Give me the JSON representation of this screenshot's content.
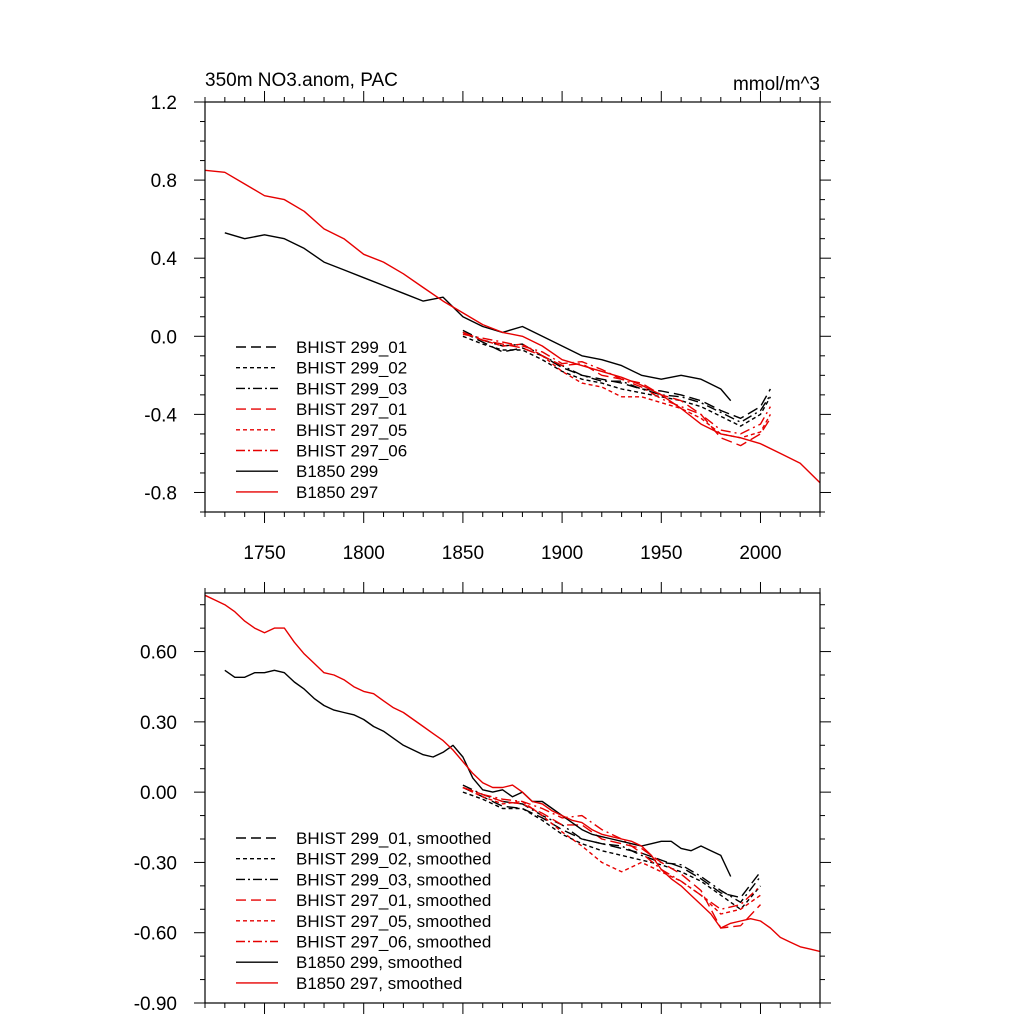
{
  "chart_data": [
    {
      "type": "line",
      "title": "350m NO3.anom, PAC",
      "units": "mmol/m^3",
      "xlim": [
        1720,
        2030
      ],
      "ylim": [
        -0.9,
        1.2
      ],
      "yticks": [
        "1.2",
        "0.8",
        "0.4",
        "0.0",
        "-0.4",
        "-0.8"
      ],
      "xticks": [
        "1750",
        "1800",
        "1850",
        "1900",
        "1950",
        "2000"
      ],
      "legend_position": "bottom-left",
      "series": [
        {
          "name": "BHIST 299_01",
          "color": "#000000",
          "dash": "long-dash",
          "x": [
            1850,
            1860,
            1870,
            1880,
            1890,
            1900,
            1910,
            1920,
            1930,
            1940,
            1950,
            1960,
            1970,
            1980,
            1990,
            2000,
            2005
          ],
          "y": [
            0.02,
            -0.03,
            -0.08,
            -0.06,
            -0.1,
            -0.16,
            -0.2,
            -0.22,
            -0.24,
            -0.27,
            -0.28,
            -0.3,
            -0.33,
            -0.38,
            -0.42,
            -0.36,
            -0.27
          ]
        },
        {
          "name": "BHIST 299_02",
          "color": "#000000",
          "dash": "short-dash",
          "x": [
            1850,
            1860,
            1870,
            1880,
            1890,
            1900,
            1910,
            1920,
            1930,
            1940,
            1950,
            1960,
            1970,
            1980,
            1990,
            2000,
            2005
          ],
          "y": [
            0.0,
            -0.04,
            -0.07,
            -0.07,
            -0.12,
            -0.18,
            -0.22,
            -0.24,
            -0.27,
            -0.29,
            -0.31,
            -0.33,
            -0.36,
            -0.41,
            -0.46,
            -0.4,
            -0.31
          ]
        },
        {
          "name": "BHIST 299_03",
          "color": "#000000",
          "dash": "dash-dot",
          "x": [
            1850,
            1860,
            1870,
            1880,
            1890,
            1900,
            1910,
            1920,
            1930,
            1940,
            1950,
            1960,
            1970,
            1980,
            1990,
            2000,
            2005
          ],
          "y": [
            0.03,
            -0.02,
            -0.05,
            -0.04,
            -0.1,
            -0.15,
            -0.2,
            -0.23,
            -0.23,
            -0.27,
            -0.3,
            -0.31,
            -0.34,
            -0.39,
            -0.44,
            -0.38,
            -0.3
          ]
        },
        {
          "name": "BHIST 297_01",
          "color": "#e60000",
          "dash": "long-dash",
          "x": [
            1850,
            1860,
            1870,
            1880,
            1890,
            1900,
            1910,
            1920,
            1930,
            1940,
            1950,
            1960,
            1970,
            1980,
            1990,
            2000,
            2005
          ],
          "y": [
            0.02,
            -0.02,
            -0.04,
            -0.06,
            -0.1,
            -0.15,
            -0.14,
            -0.2,
            -0.22,
            -0.24,
            -0.3,
            -0.33,
            -0.4,
            -0.52,
            -0.56,
            -0.5,
            -0.42
          ]
        },
        {
          "name": "BHIST 297_05",
          "color": "#e60000",
          "dash": "short-dash",
          "x": [
            1850,
            1860,
            1870,
            1880,
            1890,
            1900,
            1910,
            1920,
            1930,
            1940,
            1950,
            1960,
            1970,
            1980,
            1990,
            2000,
            2005
          ],
          "y": [
            0.02,
            -0.02,
            -0.05,
            -0.04,
            -0.1,
            -0.18,
            -0.24,
            -0.26,
            -0.31,
            -0.31,
            -0.34,
            -0.37,
            -0.42,
            -0.5,
            -0.52,
            -0.49,
            -0.4
          ]
        },
        {
          "name": "BHIST 297_06",
          "color": "#e60000",
          "dash": "dash-dot",
          "x": [
            1850,
            1860,
            1870,
            1880,
            1890,
            1900,
            1910,
            1920,
            1930,
            1940,
            1950,
            1960,
            1970,
            1980,
            1990,
            2000,
            2005
          ],
          "y": [
            0.01,
            -0.01,
            -0.03,
            -0.05,
            -0.08,
            -0.14,
            -0.13,
            -0.17,
            -0.22,
            -0.26,
            -0.32,
            -0.36,
            -0.4,
            -0.48,
            -0.5,
            -0.45,
            -0.36
          ]
        },
        {
          "name": "B1850 299",
          "color": "#000000",
          "dash": "solid",
          "x": [
            1730,
            1740,
            1750,
            1760,
            1770,
            1780,
            1790,
            1800,
            1810,
            1820,
            1830,
            1840,
            1850,
            1860,
            1870,
            1880,
            1890,
            1900,
            1910,
            1920,
            1930,
            1940,
            1950,
            1960,
            1970,
            1980,
            1985
          ],
          "y": [
            0.53,
            0.5,
            0.52,
            0.5,
            0.45,
            0.38,
            0.34,
            0.3,
            0.26,
            0.22,
            0.18,
            0.2,
            0.1,
            0.05,
            0.02,
            0.05,
            0.0,
            -0.05,
            -0.1,
            -0.12,
            -0.15,
            -0.2,
            -0.22,
            -0.2,
            -0.22,
            -0.27,
            -0.33
          ]
        },
        {
          "name": "B1850 297",
          "color": "#e60000",
          "dash": "solid",
          "x": [
            1720,
            1730,
            1740,
            1750,
            1760,
            1770,
            1780,
            1790,
            1800,
            1810,
            1820,
            1830,
            1840,
            1850,
            1860,
            1870,
            1880,
            1890,
            1900,
            1910,
            1920,
            1930,
            1940,
            1950,
            1960,
            1970,
            1980,
            1990,
            2000,
            2010,
            2020,
            2030
          ],
          "y": [
            0.85,
            0.84,
            0.78,
            0.72,
            0.7,
            0.64,
            0.55,
            0.5,
            0.42,
            0.38,
            0.32,
            0.25,
            0.18,
            0.12,
            0.06,
            0.02,
            0.0,
            -0.05,
            -0.12,
            -0.15,
            -0.18,
            -0.21,
            -0.25,
            -0.3,
            -0.37,
            -0.45,
            -0.5,
            -0.52,
            -0.55,
            -0.6,
            -0.65,
            -0.75
          ]
        }
      ]
    },
    {
      "type": "line",
      "title": "",
      "units": "",
      "xlim": [
        1720,
        2030
      ],
      "ylim": [
        -0.9,
        0.85
      ],
      "yticks": [
        "0.60",
        "0.30",
        "0.00",
        "-0.30",
        "-0.60",
        "-0.90"
      ],
      "xticks": [],
      "legend_position": "bottom-left",
      "series": [
        {
          "name": "BHIST 299_01, smoothed",
          "color": "#000000",
          "dash": "long-dash",
          "x": [
            1850,
            1860,
            1870,
            1880,
            1890,
            1900,
            1910,
            1920,
            1930,
            1940,
            1950,
            1960,
            1970,
            1980,
            1990,
            2000
          ],
          "y": [
            0.02,
            -0.02,
            -0.06,
            -0.07,
            -0.11,
            -0.16,
            -0.2,
            -0.22,
            -0.24,
            -0.26,
            -0.29,
            -0.32,
            -0.37,
            -0.43,
            -0.45,
            -0.34
          ]
        },
        {
          "name": "BHIST 299_02, smoothed",
          "color": "#000000",
          "dash": "short-dash",
          "x": [
            1850,
            1860,
            1870,
            1880,
            1890,
            1900,
            1910,
            1920,
            1930,
            1940,
            1950,
            1960,
            1970,
            1980,
            1990,
            2000
          ],
          "y": [
            0.0,
            -0.03,
            -0.07,
            -0.07,
            -0.12,
            -0.18,
            -0.22,
            -0.25,
            -0.27,
            -0.29,
            -0.31,
            -0.34,
            -0.38,
            -0.44,
            -0.5,
            -0.4
          ]
        },
        {
          "name": "BHIST 299_03, smoothed",
          "color": "#000000",
          "dash": "dash-dot",
          "x": [
            1850,
            1860,
            1870,
            1880,
            1890,
            1900,
            1910,
            1920,
            1930,
            1940,
            1950,
            1960,
            1970,
            1980,
            1990,
            2000
          ],
          "y": [
            0.03,
            -0.01,
            -0.04,
            -0.05,
            -0.1,
            -0.14,
            -0.2,
            -0.22,
            -0.23,
            -0.27,
            -0.3,
            -0.31,
            -0.36,
            -0.42,
            -0.47,
            -0.36
          ]
        },
        {
          "name": "BHIST 297_01, smoothed",
          "color": "#e60000",
          "dash": "long-dash",
          "x": [
            1850,
            1860,
            1870,
            1880,
            1890,
            1900,
            1910,
            1920,
            1930,
            1940,
            1950,
            1960,
            1970,
            1980,
            1990,
            2000
          ],
          "y": [
            0.02,
            -0.01,
            -0.04,
            -0.05,
            -0.09,
            -0.14,
            -0.14,
            -0.2,
            -0.22,
            -0.24,
            -0.3,
            -0.35,
            -0.42,
            -0.58,
            -0.57,
            -0.48
          ]
        },
        {
          "name": "BHIST 297_05, smoothed",
          "color": "#e60000",
          "dash": "short-dash",
          "x": [
            1850,
            1860,
            1870,
            1880,
            1890,
            1900,
            1910,
            1920,
            1930,
            1940,
            1950,
            1960,
            1970,
            1980,
            1990,
            2000
          ],
          "y": [
            0.02,
            -0.02,
            -0.05,
            -0.04,
            -0.1,
            -0.17,
            -0.23,
            -0.3,
            -0.34,
            -0.3,
            -0.34,
            -0.38,
            -0.44,
            -0.52,
            -0.5,
            -0.44
          ]
        },
        {
          "name": "BHIST 297_06, smoothed",
          "color": "#e60000",
          "dash": "dash-dot",
          "x": [
            1850,
            1860,
            1870,
            1880,
            1890,
            1900,
            1910,
            1920,
            1930,
            1940,
            1950,
            1960,
            1970,
            1980,
            1990,
            2000
          ],
          "y": [
            0.02,
            -0.01,
            -0.03,
            -0.04,
            -0.07,
            -0.11,
            -0.1,
            -0.16,
            -0.2,
            -0.26,
            -0.33,
            -0.38,
            -0.44,
            -0.5,
            -0.48,
            -0.4
          ]
        },
        {
          "name": "B1850 299, smoothed",
          "color": "#000000",
          "dash": "solid",
          "x": [
            1730,
            1735,
            1740,
            1745,
            1750,
            1755,
            1760,
            1765,
            1770,
            1775,
            1780,
            1785,
            1790,
            1795,
            1800,
            1805,
            1810,
            1815,
            1820,
            1825,
            1830,
            1835,
            1840,
            1845,
            1850,
            1855,
            1860,
            1865,
            1870,
            1875,
            1880,
            1885,
            1890,
            1895,
            1900,
            1905,
            1910,
            1915,
            1920,
            1925,
            1930,
            1935,
            1940,
            1945,
            1950,
            1955,
            1960,
            1965,
            1970,
            1975,
            1980,
            1985
          ],
          "y": [
            0.52,
            0.49,
            0.49,
            0.51,
            0.51,
            0.52,
            0.51,
            0.47,
            0.44,
            0.4,
            0.37,
            0.35,
            0.34,
            0.33,
            0.31,
            0.28,
            0.26,
            0.23,
            0.2,
            0.18,
            0.16,
            0.15,
            0.17,
            0.2,
            0.15,
            0.06,
            0.01,
            0.0,
            0.01,
            -0.02,
            0.0,
            -0.04,
            -0.04,
            -0.07,
            -0.1,
            -0.13,
            -0.16,
            -0.18,
            -0.19,
            -0.2,
            -0.21,
            -0.22,
            -0.23,
            -0.22,
            -0.21,
            -0.21,
            -0.24,
            -0.25,
            -0.23,
            -0.25,
            -0.27,
            -0.36
          ]
        },
        {
          "name": "B1850 297, smoothed",
          "color": "#e60000",
          "dash": "solid",
          "x": [
            1720,
            1725,
            1730,
            1735,
            1740,
            1745,
            1750,
            1755,
            1760,
            1765,
            1770,
            1775,
            1780,
            1785,
            1790,
            1795,
            1800,
            1805,
            1810,
            1815,
            1820,
            1825,
            1830,
            1835,
            1840,
            1845,
            1850,
            1855,
            1860,
            1865,
            1870,
            1875,
            1880,
            1885,
            1890,
            1895,
            1900,
            1905,
            1910,
            1915,
            1920,
            1925,
            1930,
            1935,
            1940,
            1945,
            1950,
            1955,
            1960,
            1965,
            1970,
            1975,
            1980,
            1985,
            1990,
            1995,
            2000,
            2005,
            2010,
            2015,
            2020,
            2025,
            2030
          ],
          "y": [
            0.84,
            0.82,
            0.8,
            0.77,
            0.73,
            0.7,
            0.68,
            0.7,
            0.7,
            0.64,
            0.59,
            0.55,
            0.51,
            0.5,
            0.48,
            0.45,
            0.43,
            0.42,
            0.39,
            0.36,
            0.34,
            0.31,
            0.28,
            0.25,
            0.22,
            0.18,
            0.13,
            0.08,
            0.04,
            0.02,
            0.02,
            0.03,
            0.0,
            -0.04,
            -0.05,
            -0.08,
            -0.1,
            -0.12,
            -0.13,
            -0.16,
            -0.18,
            -0.19,
            -0.2,
            -0.21,
            -0.23,
            -0.27,
            -0.33,
            -0.37,
            -0.4,
            -0.44,
            -0.48,
            -0.52,
            -0.58,
            -0.56,
            -0.55,
            -0.54,
            -0.55,
            -0.58,
            -0.62,
            -0.64,
            -0.66,
            -0.67,
            -0.68
          ]
        }
      ]
    }
  ]
}
